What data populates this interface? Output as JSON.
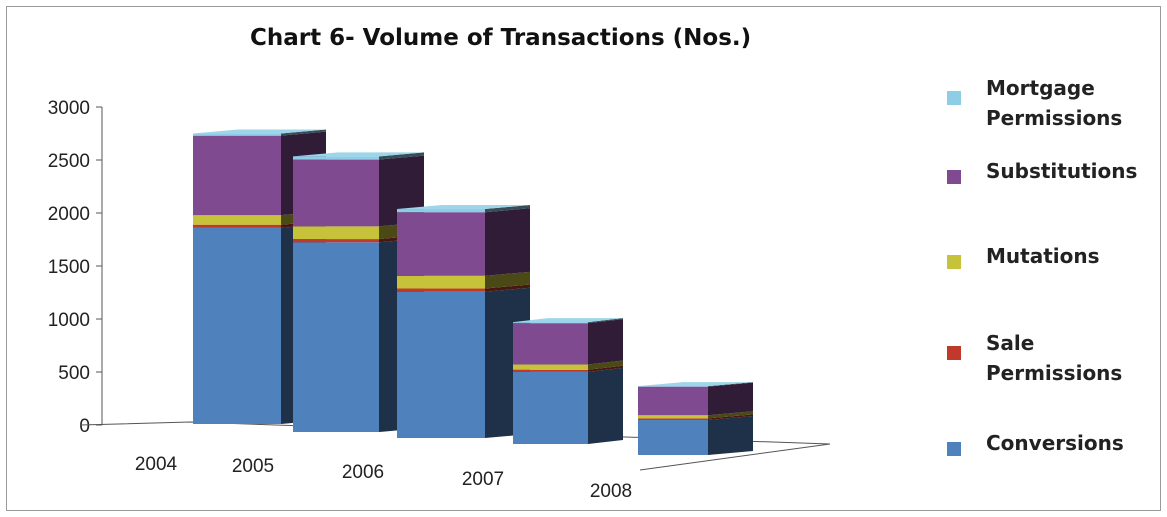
{
  "chart_data": {
    "type": "bar",
    "stacked": true,
    "three_d": true,
    "title": "Chart 6- Volume of Transactions (Nos.)",
    "categories": [
      "2004",
      "2005",
      "2006",
      "2007",
      "2008"
    ],
    "ylim": [
      0,
      3000
    ],
    "yticks": [
      "0",
      "500",
      "1000",
      "1500",
      "2000",
      "2500",
      "3000"
    ],
    "legend_position": "right",
    "series": [
      {
        "name": "Conversions",
        "legend": [
          "Conversions"
        ],
        "color": "#4f81bd",
        "values": [
          1850,
          1790,
          1380,
          680,
          330
        ]
      },
      {
        "name": "Sale Permissions",
        "legend": [
          "Sale",
          "Permissions"
        ],
        "color": "#c0392b",
        "values": [
          30,
          30,
          30,
          20,
          15
        ]
      },
      {
        "name": "Mutations",
        "legend": [
          "Mutations"
        ],
        "color": "#c6c23a",
        "values": [
          90,
          120,
          120,
          50,
          30
        ]
      },
      {
        "name": "Substitutions",
        "legend": [
          "Substitutions"
        ],
        "color": "#7f4a8f",
        "values": [
          750,
          630,
          600,
          390,
          270
        ]
      },
      {
        "name": "Mortgage Permissions",
        "legend": [
          "Mortgage",
          "Permissions"
        ],
        "color": "#8dcde6",
        "values": [
          20,
          30,
          30,
          10,
          5
        ]
      }
    ]
  }
}
